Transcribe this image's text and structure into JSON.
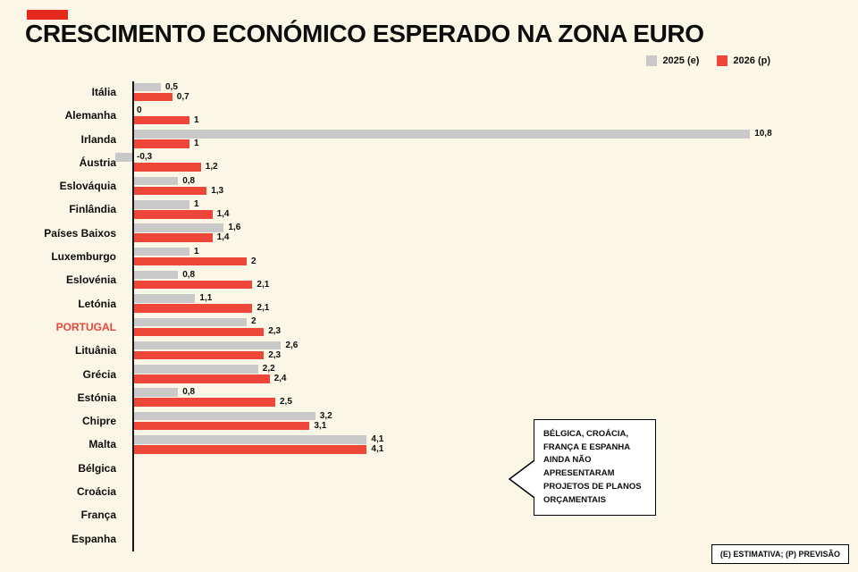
{
  "page": {
    "title": "CRESCIMENTO ECONÓMICO ESPERADO NA ZONA EURO",
    "footnote": "(E) ESTIMATIVA; (P) PREVISÃO"
  },
  "colors": {
    "background": "#fbf6e6",
    "accent": "#e5291d",
    "highlight": "#e8463a",
    "bar_2025": "#c9c9c9",
    "bar_2026": "#ee4639"
  },
  "legend": [
    {
      "label": "2025 (e)",
      "color": "#c9c9c9"
    },
    {
      "label": "2026 (p)",
      "color": "#ee4639"
    }
  ],
  "callout": {
    "text": "BÉLGICA, CROÁCIA, FRANÇA E ESPANHA AINDA NÃO APRESENTARAM PROJETOS DE PLANOS ORÇAMENTAIS"
  },
  "chart_data": {
    "type": "bar",
    "orientation": "horizontal",
    "title": "CRESCIMENTO ECONÓMICO ESPERADO NA ZONA EURO",
    "xlim": [
      -0.5,
      11
    ],
    "grid": false,
    "legend_position": "top-right",
    "highlight_index": 10,
    "categories": [
      "Itália",
      "Alemanha",
      "Irlanda",
      "Áustria",
      "Eslováquia",
      "Finlândia",
      "Países Baixos",
      "Luxemburgo",
      "Eslovénia",
      "Letónia",
      "PORTUGAL",
      "Lituânia",
      "Grécia",
      "Estónia",
      "Chipre",
      "Malta",
      "Bélgica",
      "Croácia",
      "França",
      "Espanha"
    ],
    "series": [
      {
        "name": "2025 (e)",
        "color": "#c9c9c9",
        "values": [
          0.5,
          0,
          10.8,
          -0.3,
          0.8,
          1,
          1.6,
          1,
          0.8,
          1.1,
          2,
          2.6,
          2.2,
          0.8,
          3.2,
          4.1,
          null,
          null,
          null,
          null
        ],
        "labels": [
          "0,5",
          "0",
          "10,8",
          "-0,3",
          "0,8",
          "1",
          "1,6",
          "1",
          "0,8",
          "1,1",
          "2",
          "2,6",
          "2,2",
          "0,8",
          "3,2",
          "4,1",
          "",
          "",
          "",
          ""
        ]
      },
      {
        "name": "2026 (p)",
        "color": "#ee4639",
        "values": [
          0.7,
          1,
          1,
          1.2,
          1.3,
          1.4,
          1.4,
          2,
          2.1,
          2.1,
          2.3,
          2.3,
          2.4,
          2.5,
          3.1,
          4.1,
          null,
          null,
          null,
          null
        ],
        "labels": [
          "0,7",
          "1",
          "1",
          "1,2",
          "1,3",
          "1,4",
          "1,4",
          "2",
          "2,1",
          "2,1",
          "2,3",
          "2,3",
          "2,4",
          "2,5",
          "3,1",
          "4,1",
          "",
          "",
          "",
          ""
        ]
      }
    ],
    "note": "BÉLGICA, CROÁCIA, FRANÇA E ESPANHA AINDA NÃO APRESENTARAM PROJETOS DE PLANOS ORÇAMENTAIS"
  }
}
